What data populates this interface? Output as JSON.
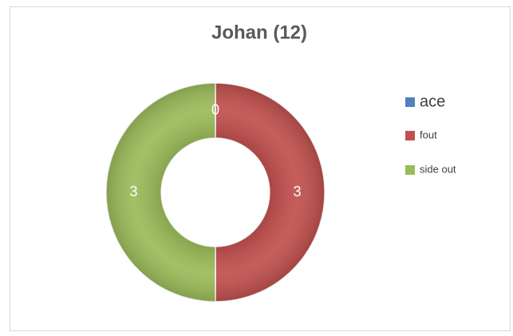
{
  "chart_data": {
    "type": "pie",
    "title": "Johan (12)",
    "categories": [
      "ace",
      "fout",
      "side out"
    ],
    "values": [
      0,
      3,
      3
    ],
    "colors": [
      "#4f81bd",
      "#c0504d",
      "#9bbb59"
    ],
    "donut": true,
    "legend": "right"
  }
}
